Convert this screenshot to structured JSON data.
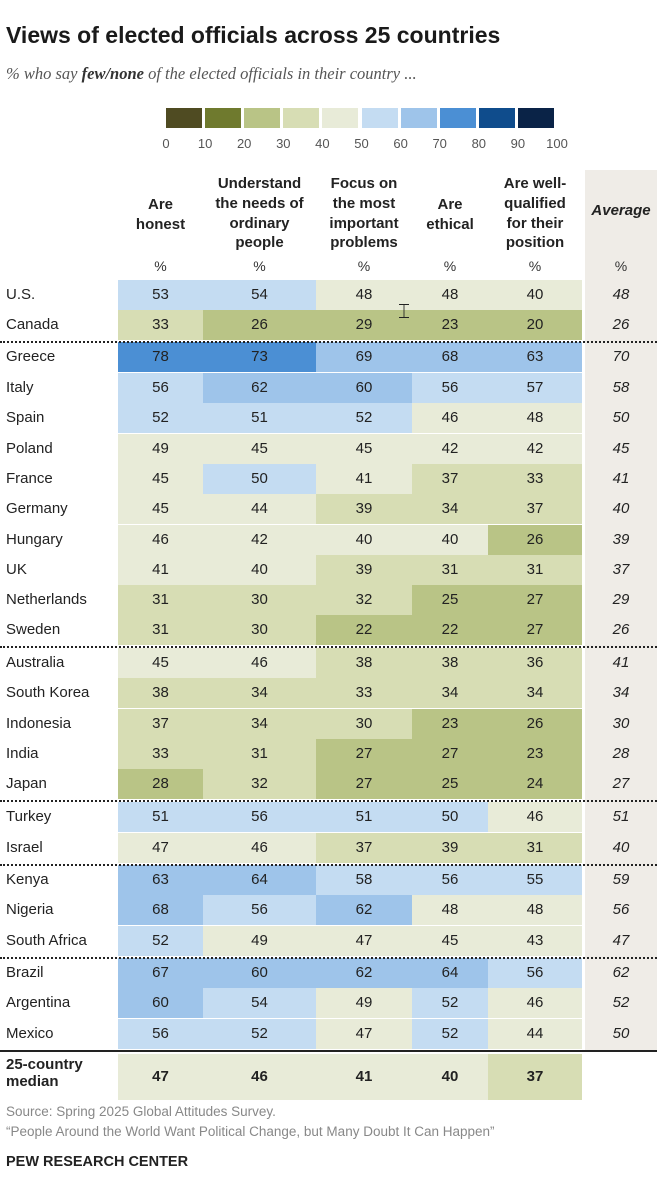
{
  "title": "Views of elected officials across 25 countries",
  "subtitle_prefix": "% who say ",
  "subtitle_bold": "few/none",
  "subtitle_suffix": " of the elected officials in their country ...",
  "colors": {
    "scale": [
      "#4f4b22",
      "#6f7a2e",
      "#b9c486",
      "#d7ddb4",
      "#e8ebd8",
      "#c4dcf2",
      "#9ec4ea",
      "#4b8fd4",
      "#0f4c8c",
      "#0a2347"
    ],
    "average_bg": "#efece7"
  },
  "chart_data": {
    "type": "table",
    "legend_ticks": [
      "0",
      "10",
      "20",
      "30",
      "40",
      "50",
      "60",
      "70",
      "80",
      "90",
      "100"
    ],
    "columns": [
      [
        "Are",
        "honest"
      ],
      [
        "Understand",
        "the needs of",
        "ordinary",
        "people"
      ],
      [
        "Focus on",
        "the most",
        "important",
        "problems"
      ],
      [
        "Are",
        "ethical"
      ],
      [
        "Are well-",
        "qualified",
        "for their",
        "position"
      ],
      [
        "Average"
      ]
    ],
    "unit_label": "%",
    "rows": [
      {
        "country": "U.S.",
        "values": [
          53,
          54,
          48,
          48,
          40
        ],
        "average": 48
      },
      {
        "country": "Canada",
        "values": [
          33,
          26,
          29,
          23,
          20
        ],
        "average": 26
      },
      {
        "country": "Greece",
        "values": [
          78,
          73,
          69,
          68,
          63
        ],
        "average": 70
      },
      {
        "country": "Italy",
        "values": [
          56,
          62,
          60,
          56,
          57
        ],
        "average": 58
      },
      {
        "country": "Spain",
        "values": [
          52,
          51,
          52,
          46,
          48
        ],
        "average": 50
      },
      {
        "country": "Poland",
        "values": [
          49,
          45,
          45,
          42,
          42
        ],
        "average": 45
      },
      {
        "country": "France",
        "values": [
          45,
          50,
          41,
          37,
          33
        ],
        "average": 41
      },
      {
        "country": "Germany",
        "values": [
          45,
          44,
          39,
          34,
          37
        ],
        "average": 40
      },
      {
        "country": "Hungary",
        "values": [
          46,
          42,
          40,
          40,
          26
        ],
        "average": 39
      },
      {
        "country": "UK",
        "values": [
          41,
          40,
          39,
          31,
          31
        ],
        "average": 37
      },
      {
        "country": "Netherlands",
        "values": [
          31,
          30,
          32,
          25,
          27
        ],
        "average": 29
      },
      {
        "country": "Sweden",
        "values": [
          31,
          30,
          22,
          22,
          27
        ],
        "average": 26
      },
      {
        "country": "Australia",
        "values": [
          45,
          46,
          38,
          38,
          36
        ],
        "average": 41
      },
      {
        "country": "South Korea",
        "values": [
          38,
          34,
          33,
          34,
          34
        ],
        "average": 34
      },
      {
        "country": "Indonesia",
        "values": [
          37,
          34,
          30,
          23,
          26
        ],
        "average": 30
      },
      {
        "country": "India",
        "values": [
          33,
          31,
          27,
          27,
          23
        ],
        "average": 28
      },
      {
        "country": "Japan",
        "values": [
          28,
          32,
          27,
          25,
          24
        ],
        "average": 27
      },
      {
        "country": "Turkey",
        "values": [
          51,
          56,
          51,
          50,
          46
        ],
        "average": 51
      },
      {
        "country": "Israel",
        "values": [
          47,
          46,
          37,
          39,
          31
        ],
        "average": 40
      },
      {
        "country": "Kenya",
        "values": [
          63,
          64,
          58,
          56,
          55
        ],
        "average": 59
      },
      {
        "country": "Nigeria",
        "values": [
          68,
          56,
          62,
          48,
          48
        ],
        "average": 56
      },
      {
        "country": "South Africa",
        "values": [
          52,
          49,
          47,
          45,
          43
        ],
        "average": 47
      },
      {
        "country": "Brazil",
        "values": [
          67,
          60,
          62,
          64,
          56
        ],
        "average": 62
      },
      {
        "country": "Argentina",
        "values": [
          60,
          54,
          49,
          52,
          46
        ],
        "average": 52
      },
      {
        "country": "Mexico",
        "values": [
          56,
          52,
          47,
          52,
          44
        ],
        "average": 50
      }
    ],
    "region_breaks_after": [
      1,
      11,
      16,
      18,
      21
    ],
    "median": {
      "label_lines": [
        "25-country",
        "median"
      ],
      "values": [
        47,
        46,
        41,
        40,
        37
      ]
    }
  },
  "source": "Source: Spring 2025 Global Attitudes Survey.",
  "report_title": "“People Around the World Want Political Change, but Many Doubt It Can Happen”",
  "brand": "PEW RESEARCH CENTER"
}
